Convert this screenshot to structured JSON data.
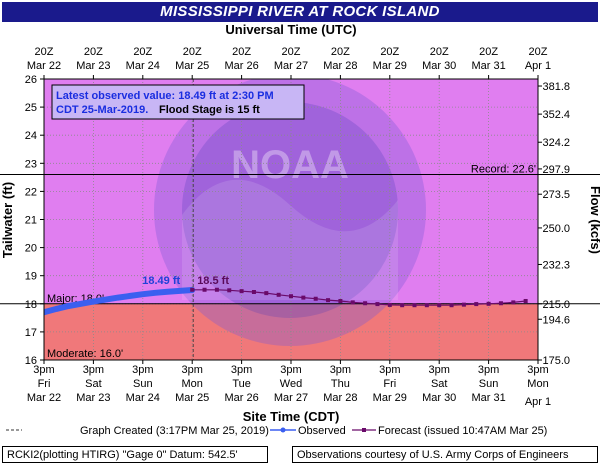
{
  "chart_data": {
    "type": "line",
    "title": "MISSISSIPPI RIVER AT ROCK ISLAND",
    "top_axis_title": "Universal Time (UTC)",
    "xlabel": "Site Time (CDT)",
    "ylabel": "Tailwater (ft)",
    "ylabel_right": "Flow (kcfs)",
    "ylim": [
      16,
      26
    ],
    "yticks": [
      16,
      17,
      18,
      19,
      20,
      21,
      22,
      23,
      24,
      25,
      26
    ],
    "right_ticks": [
      {
        "stage": 16.0,
        "label": "175.0"
      },
      {
        "stage": 17.45,
        "label": "194.6"
      },
      {
        "stage": 18.0,
        "label": "215.0"
      },
      {
        "stage": 19.4,
        "label": "232.3"
      },
      {
        "stage": 20.7,
        "label": "250.0"
      },
      {
        "stage": 21.9,
        "label": "273.5"
      },
      {
        "stage": 22.8,
        "label": "297.9"
      },
      {
        "stage": 23.75,
        "label": "324.2"
      },
      {
        "stage": 24.75,
        "label": "352.4"
      },
      {
        "stage": 25.75,
        "label": "381.8"
      }
    ],
    "x_days": [
      "Mar 22",
      "Mar 23",
      "Mar 24",
      "Mar 25",
      "Mar 26",
      "Mar 27",
      "Mar 28",
      "Mar 29",
      "Mar 30",
      "Mar 31",
      "Apr 1"
    ],
    "bottom_ticks": [
      {
        "time": "3pm",
        "weekday": "Fri",
        "date": "Mar 22"
      },
      {
        "time": "3pm",
        "weekday": "Sat",
        "date": "Mar 23"
      },
      {
        "time": "3pm",
        "weekday": "Sun",
        "date": "Mar 24"
      },
      {
        "time": "3pm",
        "weekday": "Mon",
        "date": "Mar 25"
      },
      {
        "time": "3pm",
        "weekday": "Tue",
        "date": "Mar 26"
      },
      {
        "time": "3pm",
        "weekday": "Wed",
        "date": "Mar 27"
      },
      {
        "time": "3pm",
        "weekday": "Thu",
        "date": "Mar 28"
      },
      {
        "time": "3pm",
        "weekday": "Fri",
        "date": "Mar 29"
      },
      {
        "time": "3pm",
        "weekday": "Sat",
        "date": "Mar 30"
      },
      {
        "time": "3pm",
        "weekday": "Sun",
        "date": "Mar 31"
      },
      {
        "time": "3pm",
        "weekday": "Mon",
        "date": "Apr 1"
      }
    ],
    "top_ticks": [
      {
        "time": "20Z",
        "date": "Mar 22"
      },
      {
        "time": "20Z",
        "date": "Mar 23"
      },
      {
        "time": "20Z",
        "date": "Mar 24"
      },
      {
        "time": "20Z",
        "date": "Mar 25"
      },
      {
        "time": "20Z",
        "date": "Mar 26"
      },
      {
        "time": "20Z",
        "date": "Mar 27"
      },
      {
        "time": "20Z",
        "date": "Mar 28"
      },
      {
        "time": "20Z",
        "date": "Mar 29"
      },
      {
        "time": "20Z",
        "date": "Mar 30"
      },
      {
        "time": "20Z",
        "date": "Mar 31"
      },
      {
        "time": "20Z",
        "date": "Apr  1"
      }
    ],
    "thresholds": [
      {
        "name": "Record",
        "value": 22.6,
        "label": "Record: 22.6'"
      },
      {
        "name": "Major",
        "value": 18.0,
        "label": "Major: 18.0'"
      },
      {
        "name": "Moderate",
        "value": 16.0,
        "label": "Moderate: 16.0'"
      }
    ],
    "zone_colors": {
      "above_major": "#e07ef0",
      "major": "#f0787a"
    },
    "series": [
      {
        "name": "Observed",
        "color": "#3b5ff0",
        "x": [
          0.0,
          0.25,
          0.5,
          0.75,
          1.0,
          1.25,
          1.5,
          1.75,
          2.0,
          2.25,
          2.5,
          2.75,
          3.0
        ],
        "values": [
          17.7,
          17.82,
          17.92,
          18.0,
          18.08,
          18.15,
          18.22,
          18.28,
          18.34,
          18.39,
          18.43,
          18.46,
          18.49
        ]
      },
      {
        "name": "Forecast",
        "color": "#6a0a6a",
        "x": [
          3.0,
          3.25,
          3.5,
          3.75,
          4.0,
          4.25,
          4.5,
          4.75,
          5.0,
          5.25,
          5.5,
          5.75,
          6.0,
          6.25,
          6.5,
          6.75,
          7.0,
          7.25,
          7.5,
          7.75,
          8.0,
          8.25,
          8.5,
          8.75,
          9.0,
          9.25,
          9.5,
          9.75
        ],
        "values": [
          18.5,
          18.5,
          18.5,
          18.48,
          18.45,
          18.42,
          18.38,
          18.32,
          18.27,
          18.22,
          18.18,
          18.13,
          18.1,
          18.05,
          18.02,
          17.99,
          17.96,
          17.95,
          17.95,
          17.95,
          17.95,
          17.95,
          17.97,
          17.99,
          18.0,
          18.02,
          18.05,
          18.1
        ]
      }
    ],
    "annotations": {
      "observed_label": "18.49 ft",
      "forecast_label": "18.5 ft",
      "info_line1": "Latest observed value: 18.49 ft at 2:30 PM",
      "info_line2a": "CDT 25-Mar-2019.",
      "info_line2b": " Flood Stage is 15 ft",
      "watermark": "NOAA"
    },
    "legend": {
      "created": "Graph Created (3:17PM Mar 25, 2019)",
      "observed": "Observed",
      "forecast": "Forecast (issued 10:47AM Mar 25)"
    },
    "grid": true
  },
  "footer": {
    "left": "RCKI2(plotting HTIRG) \"Gage 0\" Datum:  542.5'",
    "right": "Observations courtesy of U.S. Army Corps of Engineers"
  }
}
